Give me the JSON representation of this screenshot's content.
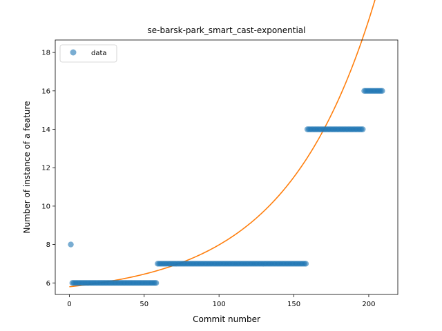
{
  "chart_data": {
    "type": "scatter",
    "title": "se-barsk-park_smart_cast-exponential",
    "xlabel": "Commit number",
    "ylabel": "Number of instance of a feature",
    "xlim": [
      -9.4,
      219.4
    ],
    "ylim": [
      5.4,
      18.65
    ],
    "xticks": [
      0,
      50,
      100,
      150,
      200
    ],
    "yticks": [
      6,
      8,
      10,
      12,
      14,
      16,
      18
    ],
    "grid": false,
    "legend": {
      "position": "top-left",
      "entries": [
        "data"
      ]
    },
    "colors": {
      "data": "#1f77b4",
      "fit": "#ff7f0e"
    },
    "series": [
      {
        "name": "data",
        "kind": "scatter",
        "segments": [
          {
            "x_from": 1,
            "x_to": 1,
            "y": 8
          },
          {
            "x_from": 2,
            "x_to": 58,
            "y": 6
          },
          {
            "x_from": 59,
            "x_to": 158,
            "y": 7
          },
          {
            "x_from": 159,
            "x_to": 196,
            "y": 14
          },
          {
            "x_from": 197,
            "x_to": 209,
            "y": 16
          }
        ]
      },
      {
        "kind": "line",
        "model": "exponential",
        "equation": {
          "a": 0.5,
          "b": 5.3,
          "k": 0.0168
        },
        "x_range": [
          0,
          209
        ]
      }
    ]
  }
}
